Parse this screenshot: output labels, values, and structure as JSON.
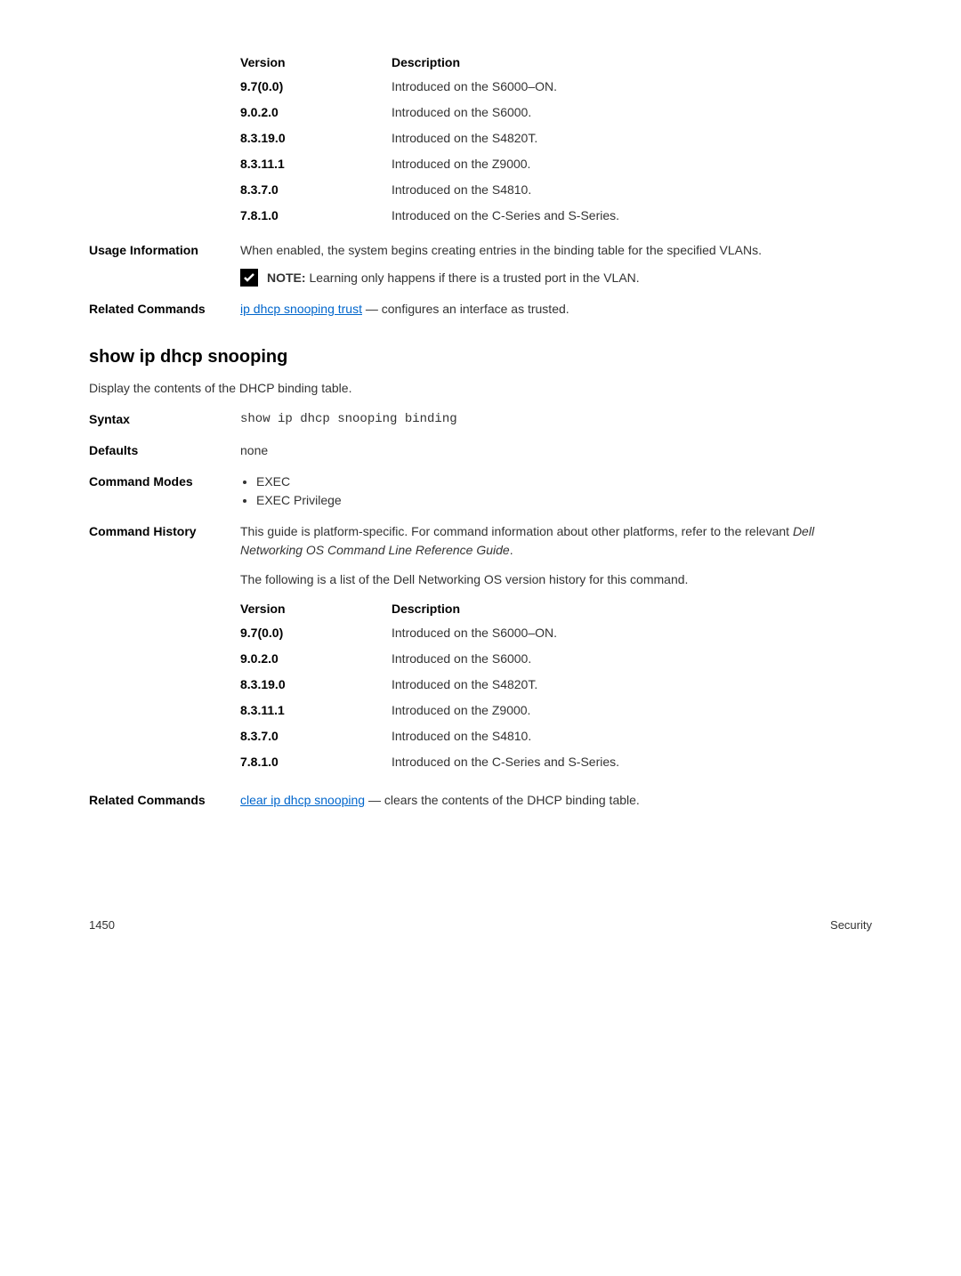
{
  "topVersions": {
    "header": {
      "v": "Version",
      "d": "Description"
    },
    "rows": [
      {
        "v": "9.7(0.0)",
        "d": "Introduced on the S6000–ON."
      },
      {
        "v": "9.0.2.0",
        "d": "Introduced on the S6000."
      },
      {
        "v": "8.3.19.0",
        "d": "Introduced on the S4820T."
      },
      {
        "v": "8.3.11.1",
        "d": "Introduced on the Z9000."
      },
      {
        "v": "8.3.7.0",
        "d": "Introduced on the S4810."
      },
      {
        "v": "7.8.1.0",
        "d": "Introduced on the C-Series and S-Series."
      }
    ]
  },
  "usage": {
    "label": "Usage Information",
    "text": "When enabled, the system begins creating entries in the binding table for the specified VLANs.",
    "noteLabel": "NOTE:",
    "noteText": " Learning only happens if there is a trusted port in the VLAN."
  },
  "related1": {
    "label": "Related Commands",
    "link": "ip dhcp snooping trust",
    "text": " — configures an interface as trusted."
  },
  "heading": "show ip dhcp snooping",
  "subheading": "Display the contents of the DHCP binding table.",
  "syntax": {
    "label": "Syntax",
    "value": "show ip dhcp snooping binding"
  },
  "defaults": {
    "label": "Defaults",
    "value": "none"
  },
  "modes": {
    "label": "Command Modes",
    "items": [
      "EXEC",
      "EXEC Privilege"
    ]
  },
  "history": {
    "label": "Command History",
    "para1a": "This guide is platform-specific. For command information about other platforms, refer to the relevant ",
    "para1b": "Dell Networking OS Command Line Reference Guide",
    "para1c": ".",
    "para2": "The following is a list of the Dell Networking OS version history for this command.",
    "header": {
      "v": "Version",
      "d": "Description"
    },
    "rows": [
      {
        "v": "9.7(0.0)",
        "d": "Introduced on the S6000–ON."
      },
      {
        "v": "9.0.2.0",
        "d": "Introduced on the S6000."
      },
      {
        "v": "8.3.19.0",
        "d": "Introduced on the S4820T."
      },
      {
        "v": "8.3.11.1",
        "d": "Introduced on the Z9000."
      },
      {
        "v": "8.3.7.0",
        "d": "Introduced on the S4810."
      },
      {
        "v": "7.8.1.0",
        "d": "Introduced on the C-Series and S-Series."
      }
    ]
  },
  "related2": {
    "label": "Related Commands",
    "link": "clear ip dhcp snooping",
    "text": " — clears the contents of the DHCP binding table."
  },
  "footer": {
    "page": "1450",
    "section": "Security"
  }
}
